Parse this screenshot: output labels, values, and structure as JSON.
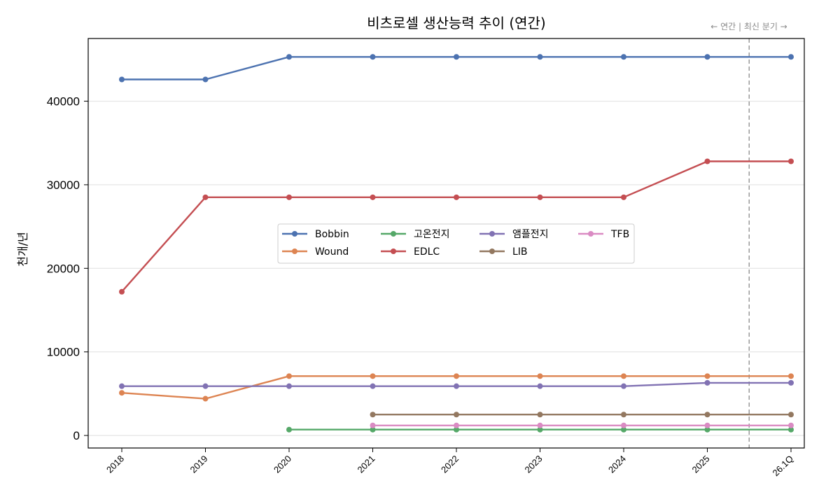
{
  "chart_data": {
    "type": "line",
    "title": "비츠로셀 생산능력 추이 (연간)",
    "xlabel": "",
    "ylabel": "천개/년",
    "categories": [
      "2018",
      "2019",
      "2020",
      "2021",
      "2022",
      "2023",
      "2024",
      "2025",
      "26.1Q"
    ],
    "ylim": [
      -1500,
      47500
    ],
    "yticks": [
      0,
      10000,
      20000,
      30000,
      40000
    ],
    "grid": "horizontal",
    "legend_position": "center",
    "annotation": {
      "text": "← 연간 | 최신 분기 →",
      "divider_between": [
        "2025",
        "26.1Q"
      ]
    },
    "series": [
      {
        "name": "Bobbin",
        "color": "#4c72b0",
        "values": [
          42600,
          42600,
          45300,
          45300,
          45300,
          45300,
          45300,
          45300,
          45300
        ]
      },
      {
        "name": "Wound",
        "color": "#dd8452",
        "values": [
          5100,
          4400,
          7100,
          7100,
          7100,
          7100,
          7100,
          7100,
          7100
        ]
      },
      {
        "name": "고온전지",
        "color": "#55a868",
        "values": [
          null,
          null,
          700,
          700,
          700,
          700,
          700,
          700,
          700
        ]
      },
      {
        "name": "EDLC",
        "color": "#c44e52",
        "values": [
          17200,
          28500,
          28500,
          28500,
          28500,
          28500,
          28500,
          32800,
          32800
        ]
      },
      {
        "name": "앰플전지",
        "color": "#8172b3",
        "values": [
          5900,
          5900,
          5900,
          5900,
          5900,
          5900,
          5900,
          6300,
          6300
        ]
      },
      {
        "name": "LIB",
        "color": "#937860",
        "values": [
          null,
          null,
          null,
          2500,
          2500,
          2500,
          2500,
          2500,
          2500
        ]
      },
      {
        "name": "TFB",
        "color": "#da8bc3",
        "values": [
          null,
          null,
          null,
          1200,
          1200,
          1200,
          1200,
          1200,
          1200
        ]
      }
    ]
  }
}
